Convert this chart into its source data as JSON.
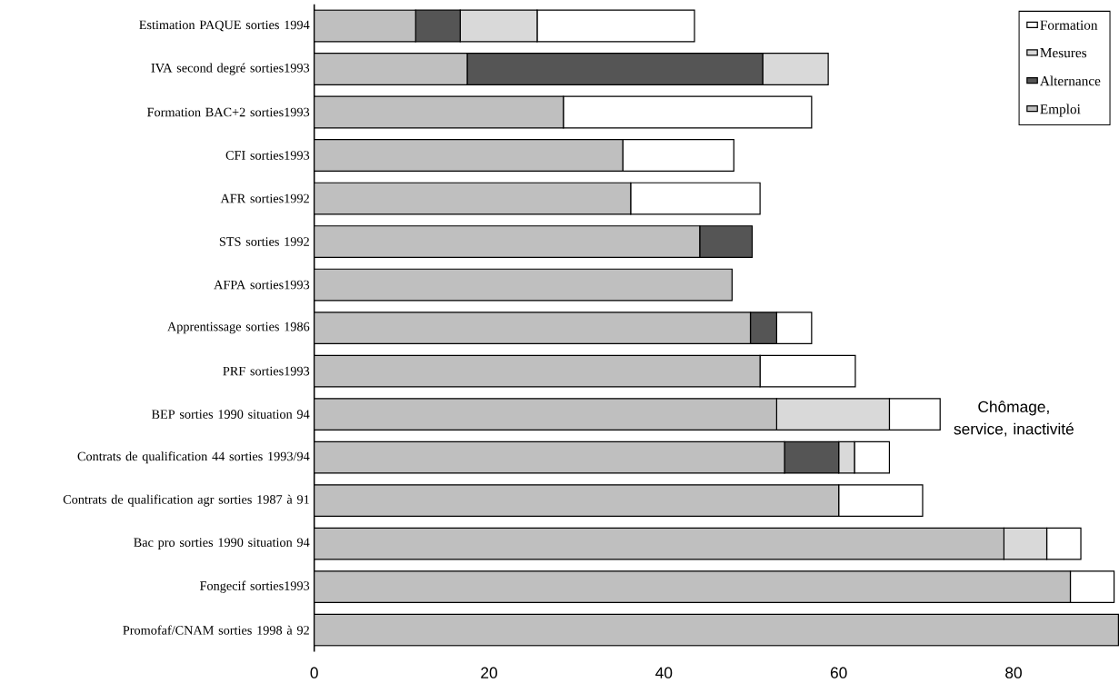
{
  "chart_data": {
    "type": "bar",
    "orientation": "horizontal",
    "stacked": true,
    "categories": [
      "Estimation PAQUE sorties 1994",
      "IVA second degré sorties1993",
      "Formation BAC+2 sorties1993",
      "CFI sorties1993",
      "AFR sorties1992",
      "STS sorties 1992",
      "AFPA sorties1993",
      "Apprentissage sorties 1986",
      "PRF sorties1993",
      "BEP sorties 1990 situation 94",
      "Contrats de qualification 44 sorties 1993/94",
      "Contrats de qualification agr sorties 1987 à 91",
      "Bac pro sorties 1990 situation 94",
      "Fongecif sorties1993",
      "Promofaf/CNAM sorties 1998 à 92"
    ],
    "series": [
      {
        "name": "Emploi",
        "color": "#bfbfbf",
        "values": [
          11.6,
          17.5,
          28.5,
          35.3,
          36.2,
          44.1,
          47.8,
          49.9,
          51.0,
          52.9,
          53.8,
          60.0,
          78.9,
          86.5,
          92
        ]
      },
      {
        "name": "Alternance",
        "color": "#555555",
        "values": [
          5.1,
          33.8,
          0,
          0,
          0,
          6.0,
          0,
          3.0,
          0,
          0,
          6.2,
          0,
          0,
          0,
          0
        ]
      },
      {
        "name": "Mesures",
        "color": "#d9d9d9",
        "values": [
          8.8,
          7.5,
          0,
          0,
          0,
          0,
          0,
          0,
          0,
          12.9,
          1.8,
          0,
          4.9,
          0,
          0
        ]
      },
      {
        "name": "Formation",
        "color": "#ffffff",
        "values": [
          18.0,
          0,
          28.4,
          12.7,
          14.8,
          0,
          0,
          4.0,
          10.9,
          5.8,
          4.0,
          9.6,
          3.9,
          5.0,
          0
        ]
      }
    ],
    "xlim": [
      0,
      92
    ],
    "xticks": [
      0,
      20,
      40,
      60,
      80
    ],
    "grid": false,
    "legend": "top right",
    "annotations": [
      "Chômage, service, inactivité"
    ]
  }
}
